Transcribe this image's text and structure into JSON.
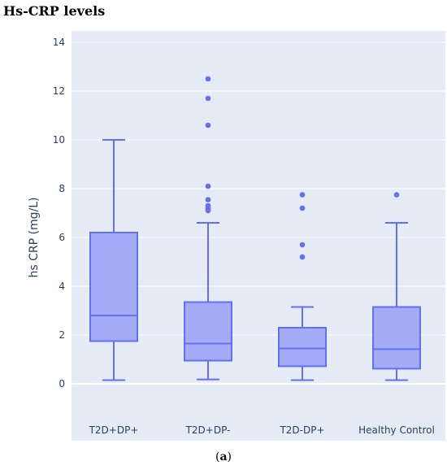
{
  "figure": {
    "title": "Hs-CRP levels",
    "caption_open": "(",
    "caption_letter": "a",
    "caption_close": ")"
  },
  "colors": {
    "plot_background": "#e5ecf6",
    "grid": "#ffffff",
    "box_fill": "#a3abf7",
    "box_line": "#636efa",
    "text": "#2a3f5f"
  },
  "chart_data": {
    "type": "box",
    "ylabel": "hs CRP (mg/L)",
    "xlabel": "",
    "ylim": [
      -1.6,
      14.5
    ],
    "yticks": [
      0,
      2,
      4,
      6,
      8,
      10,
      12,
      14
    ],
    "grid": true,
    "categories": [
      "T2D+DP+",
      "T2D+DP-",
      "T2D-DP+",
      "Healthy Control"
    ],
    "boxes": [
      {
        "min": 0.15,
        "q1": 1.75,
        "median": 2.8,
        "q3": 6.2,
        "max": 10.0,
        "outliers": []
      },
      {
        "min": 0.18,
        "q1": 0.95,
        "median": 1.65,
        "q3": 3.35,
        "max": 6.6,
        "outliers": [
          7.1,
          7.2,
          7.3,
          7.55,
          8.1,
          10.6,
          11.7,
          12.5
        ]
      },
      {
        "min": 0.15,
        "q1": 0.72,
        "median": 1.45,
        "q3": 2.3,
        "max": 3.15,
        "outliers": [
          5.2,
          5.7,
          7.2,
          7.75
        ]
      },
      {
        "min": 0.15,
        "q1": 0.62,
        "median": 1.42,
        "q3": 3.15,
        "max": 6.6,
        "outliers": [
          7.75
        ]
      }
    ]
  }
}
